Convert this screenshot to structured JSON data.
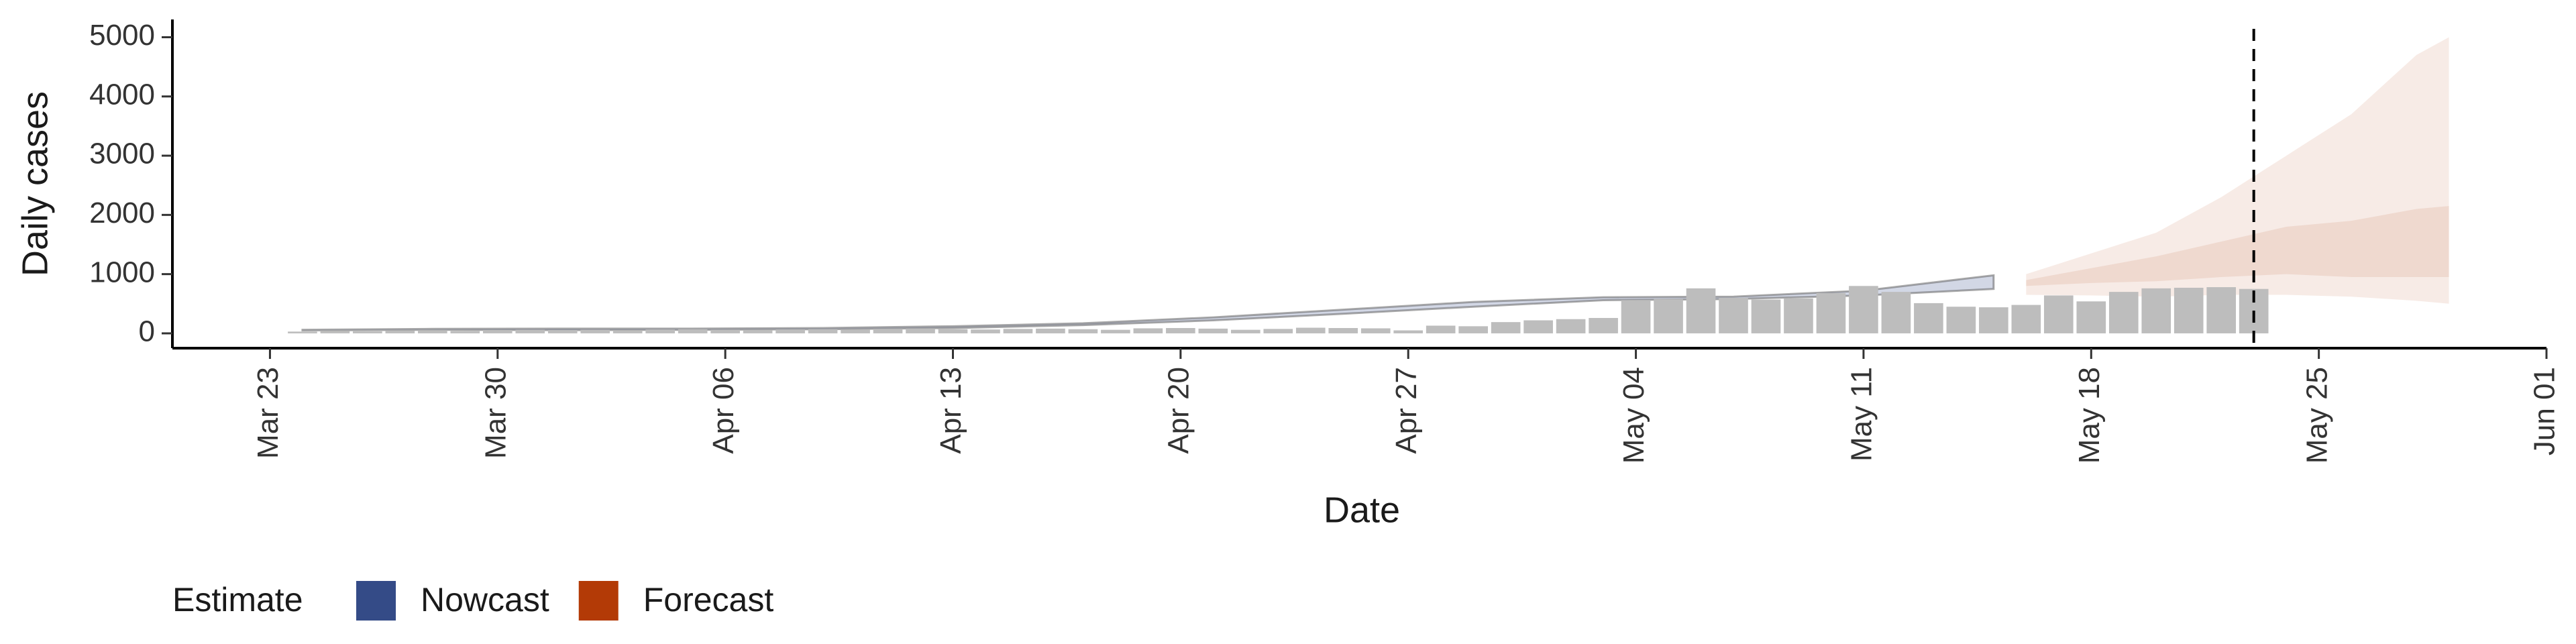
{
  "chart_data": {
    "type": "bar",
    "xlabel": "Date",
    "ylabel": "Daily cases",
    "color": "#bdbdbd",
    "x": [
      "Mar 24",
      "Mar 25",
      "Mar 26",
      "Mar 27",
      "Mar 28",
      "Mar 29",
      "Mar 30",
      "Mar 31",
      "Apr 01",
      "Apr 02",
      "Apr 03",
      "Apr 04",
      "Apr 05",
      "Apr 06",
      "Apr 07",
      "Apr 08",
      "Apr 09",
      "Apr 10",
      "Apr 11",
      "Apr 12",
      "Apr 13",
      "Apr 14",
      "Apr 15",
      "Apr 16",
      "Apr 17",
      "Apr 18",
      "Apr 19",
      "Apr 20",
      "Apr 21",
      "Apr 22",
      "Apr 23",
      "Apr 24",
      "Apr 25",
      "Apr 26",
      "Apr 27",
      "Apr 28",
      "Apr 29",
      "Apr 30",
      "May 01",
      "May 02",
      "May 03",
      "May 04",
      "May 05",
      "May 06",
      "May 07",
      "May 08",
      "May 09",
      "May 10",
      "May 11",
      "May 12",
      "May 13",
      "May 14",
      "May 15",
      "May 16",
      "May 17",
      "May 18",
      "May 19",
      "May 20",
      "May 21",
      "May 22",
      "May 23"
    ],
    "values": [
      30,
      40,
      35,
      45,
      50,
      40,
      55,
      60,
      55,
      60,
      50,
      65,
      70,
      60,
      55,
      65,
      70,
      60,
      75,
      80,
      70,
      65,
      75,
      80,
      70,
      60,
      85,
      90,
      80,
      60,
      75,
      95,
      90,
      85,
      50,
      130,
      120,
      190,
      220,
      240,
      260,
      560,
      580,
      760,
      600,
      570,
      590,
      680,
      800,
      700,
      510,
      450,
      440,
      480,
      640,
      540,
      700,
      760,
      770,
      780,
      750
    ],
    "series": [
      {
        "name": "Nowcast",
        "color": "#344b87",
        "x": [
          "Mar 24",
          "Mar 28",
          "Apr 01",
          "Apr 05",
          "Apr 09",
          "Apr 13",
          "Apr 17",
          "Apr 21",
          "Apr 25",
          "Apr 29",
          "May 03",
          "May 07",
          "May 11",
          "May 15"
        ],
        "bands": [
          {
            "lower": [
              50,
              60,
              55,
              60,
              70,
              90,
              140,
              220,
              330,
              450,
              560,
              580,
              640,
              750
            ],
            "upper": [
              60,
              75,
              80,
              80,
              90,
              120,
              170,
              270,
              400,
              530,
              610,
              620,
              720,
              980
            ]
          }
        ]
      },
      {
        "name": "Forecast",
        "color": "#b33a06",
        "x": [
          "May 16",
          "May 18",
          "May 20",
          "May 22",
          "May 24",
          "May 26",
          "May 28",
          "May 29"
        ],
        "bands": [
          {
            "lower": [
              650,
              640,
              620,
              650,
              650,
              620,
              550,
              500
            ],
            "upper": [
              1000,
              1350,
              1700,
              2300,
              3000,
              3700,
              4700,
              5000
            ]
          },
          {
            "lower": [
              800,
              850,
              880,
              950,
              1000,
              950,
              950,
              950
            ],
            "upper": [
              900,
              1100,
              1300,
              1550,
              1800,
              1900,
              2100,
              2150
            ]
          }
        ]
      }
    ],
    "vline": "May 23",
    "xlim": [
      "Mar 20",
      "Jun 01"
    ],
    "xticks": [
      "Mar 23",
      "Mar 30",
      "Apr 06",
      "Apr 13",
      "Apr 20",
      "Apr 27",
      "May 04",
      "May 11",
      "May 18",
      "May 25",
      "Jun 01"
    ],
    "ylim": [
      -250,
      5300
    ],
    "yticks": [
      0,
      1000,
      2000,
      3000,
      4000,
      5000
    ],
    "grid": false,
    "legend": {
      "title": "Estimate",
      "position": "bottom"
    }
  }
}
